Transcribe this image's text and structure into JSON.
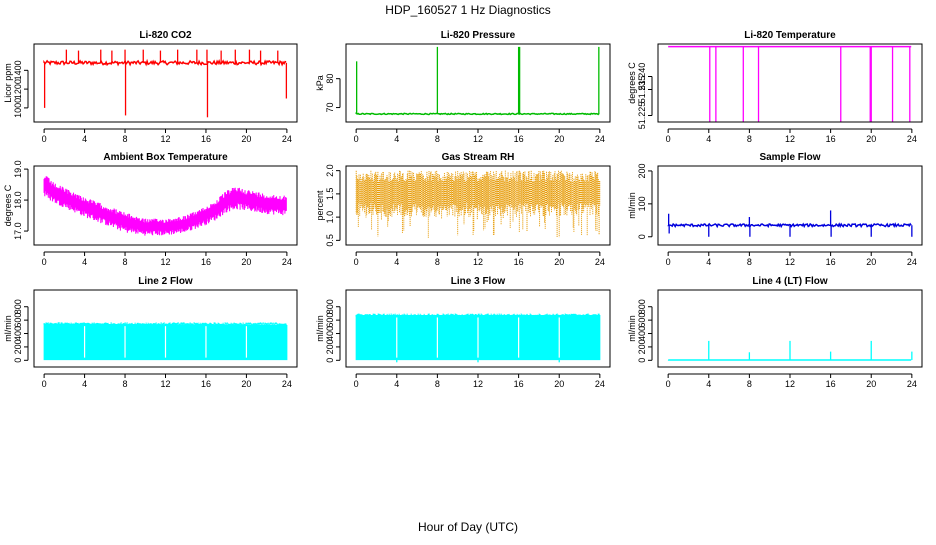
{
  "figure": {
    "title": "HDP_160527  1 Hz Diagnostics",
    "xlabel": "Hour of Day (UTC)"
  },
  "chart_data": [
    {
      "type": "line",
      "title": "Li-820 CO2",
      "ylabel": "Licor ppm",
      "color": "#ff0000",
      "xlim": [
        -1,
        25
      ],
      "ylim": [
        850,
        1680
      ],
      "xticks": [
        0,
        4,
        8,
        12,
        16,
        20,
        24
      ],
      "yticks": [
        1000,
        1200,
        1400
      ],
      "yticklabels": [
        "1000",
        "1200",
        "1400"
      ],
      "baseline": 1480,
      "noise": 20,
      "spikes": [
        {
          "x": 0.05,
          "y": 1000
        },
        {
          "x": 2.2,
          "y": 1620
        },
        {
          "x": 3.4,
          "y": 1610
        },
        {
          "x": 5.6,
          "y": 1620
        },
        {
          "x": 6.7,
          "y": 1610
        },
        {
          "x": 8.0,
          "y": 1620
        },
        {
          "x": 8.05,
          "y": 920
        },
        {
          "x": 9.8,
          "y": 1620
        },
        {
          "x": 11.5,
          "y": 1610
        },
        {
          "x": 13.2,
          "y": 1620
        },
        {
          "x": 15.1,
          "y": 1620
        },
        {
          "x": 16.1,
          "y": 1620
        },
        {
          "x": 16.15,
          "y": 900
        },
        {
          "x": 17.5,
          "y": 1610
        },
        {
          "x": 18.9,
          "y": 1620
        },
        {
          "x": 20.3,
          "y": 1620
        },
        {
          "x": 21.4,
          "y": 1610
        },
        {
          "x": 23.1,
          "y": 1610
        },
        {
          "x": 23.95,
          "y": 1100
        }
      ]
    },
    {
      "type": "line",
      "title": "Li-820 Pressure",
      "ylabel": "kPa",
      "color": "#00bb00",
      "xlim": [
        -1,
        25
      ],
      "ylim": [
        65,
        92
      ],
      "xticks": [
        0,
        4,
        8,
        12,
        16,
        20,
        24
      ],
      "yticks": [
        70,
        80
      ],
      "yticklabels": [
        "70",
        "80"
      ],
      "baseline": 67.8,
      "noise": 0.2,
      "spikes": [
        {
          "x": 0.05,
          "y": 86
        },
        {
          "x": 8.0,
          "y": 91
        },
        {
          "x": 16.0,
          "y": 91
        },
        {
          "x": 16.1,
          "y": 91
        },
        {
          "x": 23.9,
          "y": 91
        }
      ]
    },
    {
      "type": "line",
      "title": "Li-820 Temperature",
      "ylabel": "degrees C",
      "color": "#ff00ff",
      "xlim": [
        -1,
        25
      ],
      "ylim": [
        51.2225,
        51.2525
      ],
      "xticks": [
        0,
        4,
        8,
        12,
        16,
        20,
        24
      ],
      "yticks": [
        51.225,
        51.235,
        51.24
      ],
      "yticklabels": [
        "51.225",
        "51.235",
        "51.240"
      ],
      "baseline": 51.2515,
      "noise": 0,
      "spikes": [
        {
          "x": 4.1,
          "y": 51.2225
        },
        {
          "x": 4.7,
          "y": 51.2225
        },
        {
          "x": 7.4,
          "y": 51.2225
        },
        {
          "x": 8.9,
          "y": 51.2225
        },
        {
          "x": 17.0,
          "y": 51.2225
        },
        {
          "x": 19.9,
          "y": 51.2225
        },
        {
          "x": 20.0,
          "y": 51.2225
        },
        {
          "x": 22.1,
          "y": 51.2225
        },
        {
          "x": 23.8,
          "y": 51.2225
        }
      ]
    },
    {
      "type": "line",
      "title": "Ambient Box Temperature",
      "ylabel": "degrees C",
      "color": "#ff00ff",
      "xlim": [
        -1,
        25
      ],
      "ylim": [
        16.55,
        19.1
      ],
      "xticks": [
        0,
        4,
        8,
        12,
        16,
        20,
        24
      ],
      "yticks": [
        17.0,
        18.0,
        19.0
      ],
      "yticklabels": [
        "17.0",
        "18.0",
        "19.0"
      ],
      "band": {
        "x": [
          0,
          1,
          2,
          4,
          6,
          8,
          10,
          12,
          14,
          16,
          17,
          18,
          19,
          20,
          22,
          24
        ],
        "low": [
          18.1,
          17.9,
          17.75,
          17.45,
          17.2,
          16.95,
          16.85,
          16.85,
          16.95,
          17.2,
          17.35,
          17.6,
          17.7,
          17.65,
          17.55,
          17.5
        ],
        "high": [
          18.85,
          18.55,
          18.4,
          18.1,
          17.85,
          17.6,
          17.4,
          17.4,
          17.5,
          17.8,
          18.0,
          18.3,
          18.45,
          18.35,
          18.2,
          18.15
        ]
      }
    },
    {
      "type": "scatter",
      "title": "Gas Stream RH",
      "ylabel": "percent",
      "color": "#e69900",
      "xlim": [
        -1,
        25
      ],
      "ylim": [
        0.4,
        2.1
      ],
      "xticks": [
        0,
        4,
        8,
        12,
        16,
        20,
        24
      ],
      "yticks": [
        0.5,
        1.0,
        1.5,
        2.0
      ],
      "yticklabels": [
        "0.5",
        "1.0",
        "1.5",
        "2.0"
      ],
      "band": {
        "x": [
          0,
          24
        ],
        "low": [
          1.0,
          1.0
        ],
        "high": [
          2.0,
          2.0
        ]
      }
    },
    {
      "type": "line",
      "title": "Sample Flow",
      "ylabel": "ml/min",
      "color": "#0000dd",
      "xlim": [
        -1,
        25
      ],
      "ylim": [
        -25,
        215
      ],
      "xticks": [
        0,
        4,
        8,
        12,
        16,
        20,
        24
      ],
      "yticks": [
        0,
        100,
        200
      ],
      "yticklabels": [
        "0",
        "100",
        "200"
      ],
      "baseline": 35,
      "noise": 4,
      "spikes": [
        {
          "x": 0.05,
          "y": 70
        },
        {
          "x": 0.1,
          "y": 10
        },
        {
          "x": 4.0,
          "y": 0
        },
        {
          "x": 8.0,
          "y": 60
        },
        {
          "x": 8.05,
          "y": 0
        },
        {
          "x": 12.0,
          "y": 0
        },
        {
          "x": 16.0,
          "y": 80
        },
        {
          "x": 16.05,
          "y": 0
        },
        {
          "x": 20.0,
          "y": 0
        },
        {
          "x": 24.0,
          "y": 0
        }
      ]
    },
    {
      "type": "area",
      "title": "Line 2 Flow",
      "ylabel": "ml/min",
      "color": "#00ffff",
      "xlim": [
        -1,
        25
      ],
      "ylim": [
        -100,
        1050
      ],
      "xticks": [
        0,
        4,
        8,
        12,
        16,
        20,
        24
      ],
      "yticks": [
        0,
        200,
        400,
        600,
        800
      ],
      "yticklabels": [
        "0",
        "200",
        "400",
        "600",
        "800"
      ],
      "band": {
        "x": [
          0,
          24
        ],
        "low": [
          10,
          10
        ],
        "high": [
          540,
          520
        ]
      },
      "gaps": [
        4.0,
        8.0,
        12.0,
        16.0,
        20.0
      ],
      "spikes": []
    },
    {
      "type": "area",
      "title": "Line 3 Flow",
      "ylabel": "ml/min",
      "color": "#00ffff",
      "xlim": [
        -1,
        25
      ],
      "ylim": [
        -100,
        1050
      ],
      "xticks": [
        0,
        4,
        8,
        12,
        16,
        20,
        24
      ],
      "yticks": [
        0,
        200,
        400,
        600,
        800
      ],
      "yticklabels": [
        "0",
        "200",
        "400",
        "600",
        "800"
      ],
      "band": {
        "x": [
          0,
          24
        ],
        "low": [
          10,
          10
        ],
        "high": [
          670,
          670
        ]
      },
      "gaps": [
        4.0,
        8.0,
        12.0,
        16.0,
        20.0
      ],
      "spikes": [
        {
          "x": 4.0,
          "y": -30
        },
        {
          "x": 12.0,
          "y": -30
        },
        {
          "x": 20.0,
          "y": -30
        }
      ]
    },
    {
      "type": "line",
      "title": "Line 4 (LT) Flow",
      "ylabel": "ml/min",
      "color": "#00ffff",
      "xlim": [
        -1,
        25
      ],
      "ylim": [
        -100,
        1050
      ],
      "xticks": [
        0,
        4,
        8,
        12,
        16,
        20,
        24
      ],
      "yticks": [
        0,
        200,
        400,
        600,
        800
      ],
      "yticklabels": [
        "0",
        "200",
        "400",
        "600",
        "800"
      ],
      "baseline": 5,
      "noise": 0,
      "spikes": [
        {
          "x": 4.0,
          "y": 290
        },
        {
          "x": 8.0,
          "y": 120
        },
        {
          "x": 12.0,
          "y": 290
        },
        {
          "x": 16.0,
          "y": 130
        },
        {
          "x": 20.0,
          "y": 290
        },
        {
          "x": 24.0,
          "y": 130
        }
      ]
    }
  ]
}
